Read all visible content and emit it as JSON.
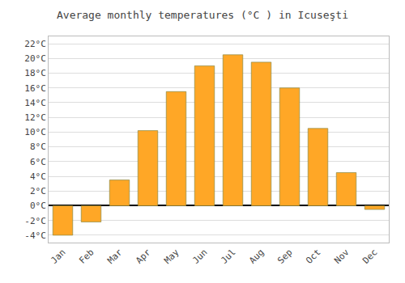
{
  "chart_data": {
    "type": "bar",
    "title": "Average monthly temperatures (°C ) in Icuseşti",
    "categories": [
      "Jan",
      "Feb",
      "Mar",
      "Apr",
      "May",
      "Jun",
      "Jul",
      "Aug",
      "Sep",
      "Oct",
      "Nov",
      "Dec"
    ],
    "values": [
      -4.0,
      -2.2,
      3.5,
      10.2,
      15.5,
      19.0,
      20.5,
      19.5,
      16.0,
      10.5,
      4.5,
      -0.5
    ],
    "color": "#FFA726",
    "ylim": [
      -5,
      23
    ],
    "yticks": [
      {
        "value": -4,
        "label": "-4°C"
      },
      {
        "value": -2,
        "label": "-2°C"
      },
      {
        "value": 0,
        "label": "0°C"
      },
      {
        "value": 2,
        "label": "2°C"
      },
      {
        "value": 4,
        "label": "4°C"
      },
      {
        "value": 6,
        "label": "6°C"
      },
      {
        "value": 8,
        "label": "8°C"
      },
      {
        "value": 10,
        "label": "10°C"
      },
      {
        "value": 12,
        "label": "12°C"
      },
      {
        "value": 14,
        "label": "14°C"
      },
      {
        "value": 16,
        "label": "16°C"
      },
      {
        "value": 18,
        "label": "18°C"
      },
      {
        "value": 20,
        "label": "20°C"
      },
      {
        "value": 22,
        "label": "22°C"
      }
    ],
    "grid": true
  }
}
